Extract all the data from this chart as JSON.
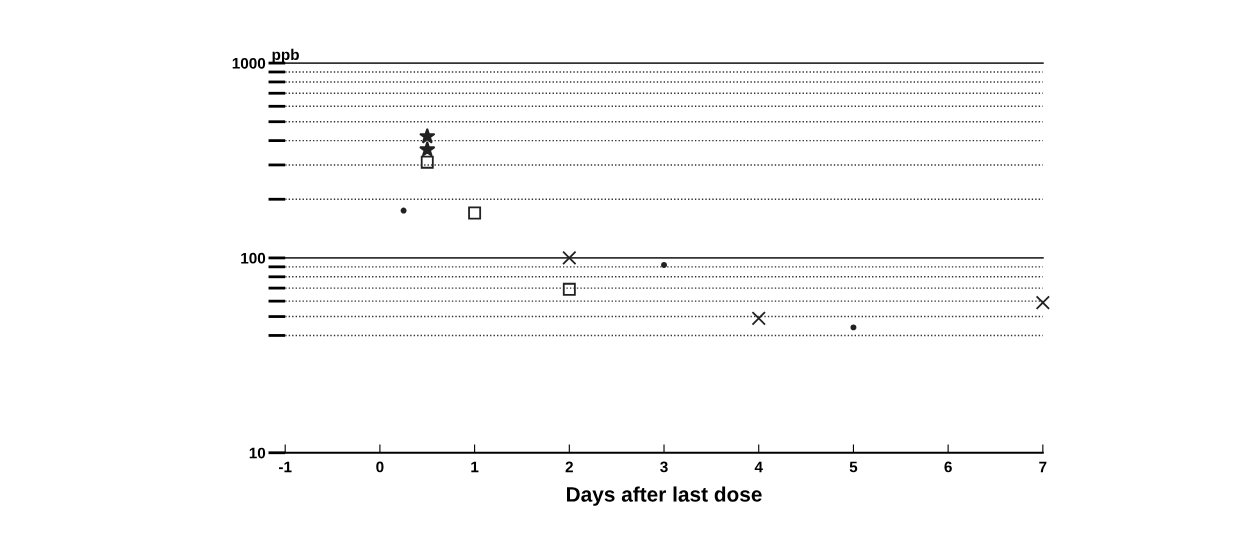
{
  "chart_data": {
    "type": "scatter",
    "xlabel": "Days after last dose",
    "ylabel": "ppb",
    "log": "y",
    "grid": "y",
    "legend": false,
    "xlim": [
      -1,
      7
    ],
    "xticks": [
      -1,
      0,
      1,
      2,
      3,
      4,
      5,
      6,
      7
    ],
    "ylim": [
      10,
      1000
    ],
    "yticks": [
      10,
      {
        "value": 40,
        "label": null
      },
      {
        "value": 50,
        "label": null
      },
      {
        "value": 60,
        "label": null
      },
      {
        "value": 70,
        "label": null
      },
      {
        "value": 80,
        "label": null
      },
      {
        "value": 90,
        "label": null
      },
      100,
      {
        "value": 200,
        "label": null
      },
      {
        "value": 300,
        "label": null
      },
      {
        "value": 400,
        "label": null
      },
      {
        "value": 500,
        "label": null
      },
      {
        "value": 600,
        "label": null
      },
      {
        "value": 700,
        "label": null
      },
      {
        "value": 800,
        "label": null
      },
      {
        "value": 900,
        "label": null
      },
      1000
    ],
    "ref_lines": [
      {
        "axis": "y",
        "value": 100,
        "color": "#333333",
        "line_style": "solid"
      },
      {
        "axis": "y",
        "value": 1000,
        "color": "#333333",
        "line_style": "solid"
      }
    ],
    "series": [
      {
        "color": "#222222",
        "marker": "star",
        "x": [
          0.5,
          0.5
        ],
        "values": [
          420,
          360
        ]
      },
      {
        "color": "#222222",
        "marker": "square",
        "x": [
          0.5,
          1,
          2
        ],
        "values": [
          310,
          170,
          69
        ]
      },
      {
        "color": "#222222",
        "marker": "circle",
        "x": [
          0.25,
          3,
          5
        ],
        "values": [
          175,
          92,
          44
        ]
      },
      {
        "color": "#222222",
        "marker": "cross",
        "x": [
          2,
          4,
          7
        ],
        "values": [
          100,
          49,
          59
        ]
      }
    ]
  }
}
